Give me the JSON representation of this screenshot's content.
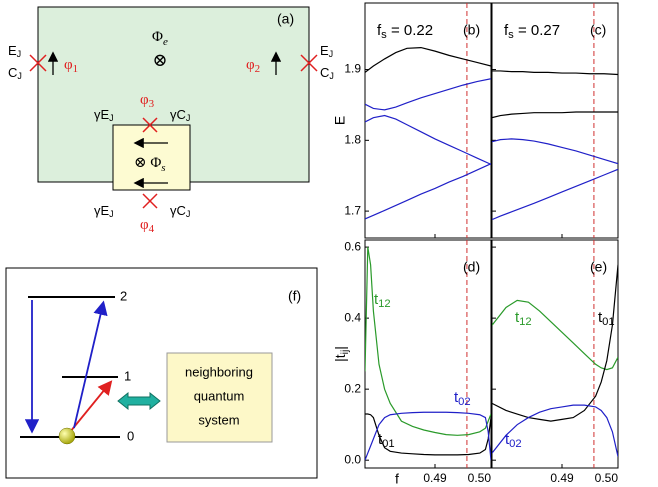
{
  "diagram_a": {
    "panel_label": "(a)",
    "left_EJ": {
      "main": "E",
      "sub": "J"
    },
    "left_CJ": {
      "main": "C",
      "sub": "J"
    },
    "right_EJ": {
      "main": "E",
      "sub": "J"
    },
    "right_CJ": {
      "main": "C",
      "sub": "J"
    },
    "phi1": {
      "main": "φ",
      "sub": "1"
    },
    "phi2": {
      "main": "φ",
      "sub": "2"
    },
    "phi3": {
      "main": "φ",
      "sub": "3"
    },
    "phi4": {
      "main": "φ",
      "sub": "4"
    },
    "phi_e": {
      "main": "Φ",
      "sub": "e"
    },
    "otimes_e": "⊗",
    "phi_s": {
      "main": "⊗ Φ",
      "sub": "s"
    },
    "gEJ_top": {
      "main": "γE",
      "sub": "J"
    },
    "gCJ_top": {
      "main": "γC",
      "sub": "J"
    },
    "gEJ_bottom": {
      "main": "γE",
      "sub": "J"
    },
    "gCJ_bottom": {
      "main": "γC",
      "sub": "J"
    }
  },
  "diagram_f": {
    "panel_label": "(f)",
    "levels": [
      "0",
      "1",
      "2"
    ],
    "system": [
      "neighboring",
      "quantum",
      "system"
    ]
  },
  "chart_data": [
    {
      "type": "line",
      "panel_label": "(b)",
      "annotation": {
        "main": "f",
        "sub": "s",
        "rest": " = 0.22"
      },
      "ylabel": "E",
      "xlim": [
        0.4775,
        0.5
      ],
      "ylim": [
        1.662,
        1.994
      ],
      "xticks": [
        0.49,
        {
          "value": 0.5,
          "label": "0.50"
        }
      ],
      "yticks": [
        1.7,
        1.8,
        1.9
      ],
      "show_xtick_labels": false,
      "show_ytick_labels": true,
      "vline": 0.4957,
      "vline_color": "#d03030",
      "x": [
        0.4775,
        0.479,
        0.481,
        0.483,
        0.485,
        0.4875,
        0.49,
        0.4925,
        0.495,
        0.4975,
        0.5
      ],
      "series": [
        {
          "color": "#000000",
          "values": [
            1.896,
            1.905,
            1.915,
            1.924,
            1.93,
            1.931,
            1.926,
            1.92,
            1.915,
            1.91,
            1.905
          ]
        },
        {
          "color": "#2020c8",
          "values": [
            1.851,
            1.845,
            1.843,
            1.847,
            1.853,
            1.86,
            1.866,
            1.872,
            1.878,
            1.883,
            1.887
          ]
        },
        {
          "color": "#2020c8",
          "values": [
            1.826,
            1.832,
            1.835,
            1.83,
            1.822,
            1.812,
            1.802,
            1.793,
            1.784,
            1.775,
            1.766
          ]
        },
        {
          "color": "#2020c8",
          "values": [
            1.689,
            1.694,
            1.701,
            1.708,
            1.715,
            1.724,
            1.732,
            1.741,
            1.749,
            1.758,
            1.767
          ]
        }
      ]
    },
    {
      "type": "line",
      "panel_label": "(c)",
      "annotation": {
        "main": "f",
        "sub": "s",
        "rest": " = 0.27"
      },
      "xlim": [
        0.4775,
        0.5
      ],
      "ylim": [
        1.662,
        1.994
      ],
      "xticks": [
        0.49,
        {
          "value": 0.5,
          "label": "0.50"
        }
      ],
      "yticks": [
        1.7,
        1.8,
        1.9
      ],
      "show_xtick_labels": false,
      "show_ytick_labels": false,
      "vline": 0.4957,
      "vline_color": "#d03030",
      "x": [
        0.4775,
        0.479,
        0.481,
        0.483,
        0.485,
        0.4875,
        0.49,
        0.4925,
        0.495,
        0.4975,
        0.5
      ],
      "series": [
        {
          "color": "#000000",
          "values": [
            1.898,
            1.898,
            1.897,
            1.897,
            1.896,
            1.896,
            1.895,
            1.895,
            1.894,
            1.894,
            1.893
          ]
        },
        {
          "color": "#000000",
          "values": [
            1.832,
            1.835,
            1.837,
            1.838,
            1.839,
            1.839,
            1.839,
            1.84,
            1.84,
            1.84,
            1.84
          ]
        },
        {
          "color": "#2020c8",
          "values": [
            1.798,
            1.801,
            1.802,
            1.801,
            1.799,
            1.795,
            1.79,
            1.785,
            1.779,
            1.773,
            1.767
          ]
        },
        {
          "color": "#2020c8",
          "values": [
            1.688,
            1.693,
            1.699,
            1.705,
            1.711,
            1.719,
            1.727,
            1.735,
            1.743,
            1.751,
            1.759
          ]
        }
      ]
    },
    {
      "type": "line",
      "panel_label": "(d)",
      "ylabel": {
        "main": "|t",
        "sub": "ij",
        "rest": "|"
      },
      "xlabel": "f",
      "xlim": [
        0.4775,
        0.5
      ],
      "ylim": [
        -0.022,
        0.62
      ],
      "xticks": [
        0.49,
        {
          "value": 0.5,
          "label": "0.50"
        }
      ],
      "yticks": [
        {
          "value": 0,
          "label": "0.0"
        },
        0.2,
        0.4,
        0.6
      ],
      "show_xtick_labels": true,
      "show_ytick_labels": true,
      "vline": 0.4957,
      "vline_color": "#d03030",
      "x": [
        0.4775,
        0.478,
        0.4785,
        0.479,
        0.48,
        0.481,
        0.482,
        0.484,
        0.486,
        0.488,
        0.49,
        0.492,
        0.494,
        0.496,
        0.498,
        0.499,
        0.4995,
        0.5
      ],
      "series": [
        {
          "label": {
            "main": "t",
            "sub": "12"
          },
          "color": "#2a9a2a",
          "values": [
            0.25,
            0.6,
            0.55,
            0.42,
            0.27,
            0.2,
            0.16,
            0.11,
            0.095,
            0.085,
            0.078,
            0.072,
            0.07,
            0.072,
            0.08,
            0.09,
            0.11,
            0.13
          ]
        },
        {
          "label": {
            "main": "t",
            "sub": "01"
          },
          "color": "#000000",
          "values": [
            0.13,
            0.13,
            0.128,
            0.12,
            0.07,
            0.035,
            0.025,
            0.02,
            0.018,
            0.016,
            0.015,
            0.015,
            0.015,
            0.016,
            0.02,
            0.03,
            0.06,
            0.12
          ]
        },
        {
          "label": {
            "main": "t",
            "sub": "02"
          },
          "color": "#2020c8",
          "values": [
            0.0,
            0.02,
            0.04,
            0.06,
            0.1,
            0.12,
            0.128,
            0.132,
            0.134,
            0.135,
            0.135,
            0.135,
            0.134,
            0.132,
            0.128,
            0.12,
            0.08,
            0.0
          ]
        }
      ]
    },
    {
      "type": "line",
      "panel_label": "(e)",
      "xlim": [
        0.4775,
        0.5
      ],
      "ylim": [
        -0.022,
        0.62
      ],
      "xticks": [
        0.49,
        {
          "value": 0.5,
          "label": "0.50"
        }
      ],
      "yticks": [
        {
          "value": 0,
          "label": "0.0"
        },
        0.2,
        0.4,
        0.6
      ],
      "show_xtick_labels": true,
      "show_ytick_labels": false,
      "vline": 0.4957,
      "vline_color": "#d03030",
      "x": [
        0.4775,
        0.48,
        0.482,
        0.484,
        0.486,
        0.488,
        0.49,
        0.492,
        0.494,
        0.496,
        0.497,
        0.498,
        0.499,
        0.5
      ],
      "series": [
        {
          "label": {
            "main": "t",
            "sub": "12"
          },
          "color": "#2a9a2a",
          "values": [
            0.38,
            0.43,
            0.45,
            0.445,
            0.42,
            0.39,
            0.36,
            0.33,
            0.3,
            0.27,
            0.26,
            0.255,
            0.26,
            0.29
          ]
        },
        {
          "label": {
            "main": "t",
            "sub": "01"
          },
          "color": "#000000",
          "values": [
            0.16,
            0.14,
            0.13,
            0.12,
            0.115,
            0.11,
            0.115,
            0.12,
            0.14,
            0.18,
            0.22,
            0.28,
            0.38,
            0.55
          ]
        },
        {
          "label": {
            "main": "t",
            "sub": "02"
          },
          "color": "#2020c8",
          "values": [
            0.02,
            0.07,
            0.1,
            0.12,
            0.135,
            0.145,
            0.15,
            0.155,
            0.155,
            0.15,
            0.14,
            0.12,
            0.08,
            0.01
          ]
        }
      ]
    }
  ]
}
